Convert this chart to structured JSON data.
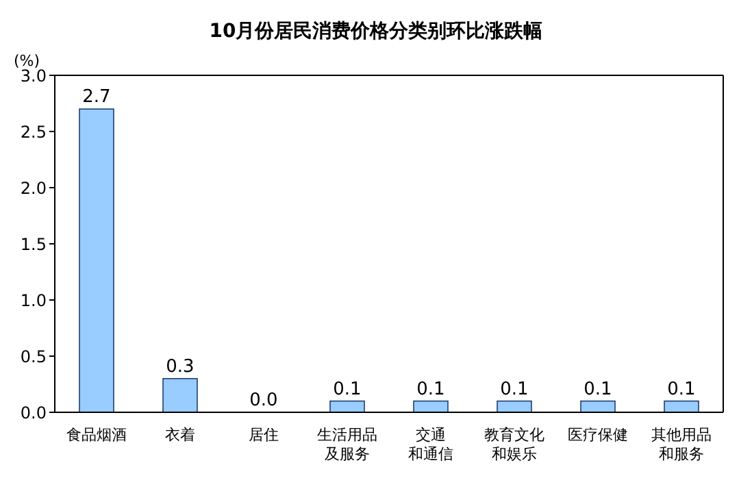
{
  "chart_data": {
    "type": "bar",
    "title": "10月份居民消费价格分类别环比涨跌幅",
    "ylabel": "(%)",
    "categories": [
      "食品烟酒",
      "衣着",
      "居住",
      "生活用品及服务",
      "交通和通信",
      "教育文化和娱乐",
      "医疗保健",
      "其他用品和服务"
    ],
    "values": [
      2.7,
      0.3,
      0.0,
      0.1,
      0.1,
      0.1,
      0.1,
      0.1
    ],
    "value_labels": [
      "2.7",
      "0.3",
      "0.0",
      "0.1",
      "0.1",
      "0.1",
      "0.1",
      "0.1"
    ],
    "color": "#99ccff",
    "ylim": [
      0,
      3
    ],
    "yticks": [
      {
        "value": 0,
        "label": "0.0"
      },
      {
        "value": 0.5,
        "label": "0.5"
      },
      {
        "value": 1,
        "label": "1.0"
      },
      {
        "value": 1.5,
        "label": "1.5"
      },
      {
        "value": 2,
        "label": "2.0"
      },
      {
        "value": 2.5,
        "label": "2.5"
      },
      {
        "value": 3,
        "label": "3.0"
      }
    ],
    "grid": false,
    "legend": false
  }
}
